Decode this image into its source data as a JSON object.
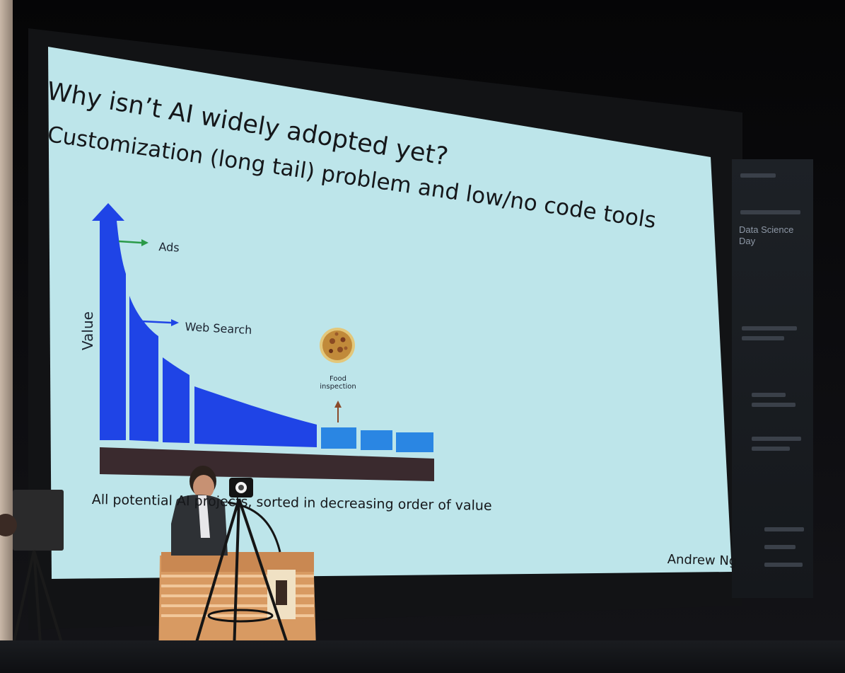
{
  "slide": {
    "title": "Why isn’t AI widely adopted yet?",
    "subtitle": "Customization (long tail) problem and low/no code tools",
    "axis_y_label": "Value",
    "annotations": {
      "ads": "Ads",
      "web_search": "Web Search",
      "food_inspection": "Food\ninspection"
    },
    "caption": "All potential AI projects, sorted in decreasing order of value",
    "author": "Andrew Ng"
  },
  "event_banner": {
    "title": "Data Science\nDay"
  },
  "colors": {
    "slide_background": "#bde5ea",
    "bar_blue": "#1f44e6",
    "bar_light_blue": "#2a86e3",
    "base_bar": "#3a2a2e",
    "ads_arrow": "#2a9a48",
    "web_search_arrow": "#1f44e6",
    "food_arrow": "#8a4a2a",
    "pizza": "#c9a04a"
  },
  "icons": {
    "food": "pizza-icon",
    "axis_arrow": "up-arrow-icon"
  }
}
